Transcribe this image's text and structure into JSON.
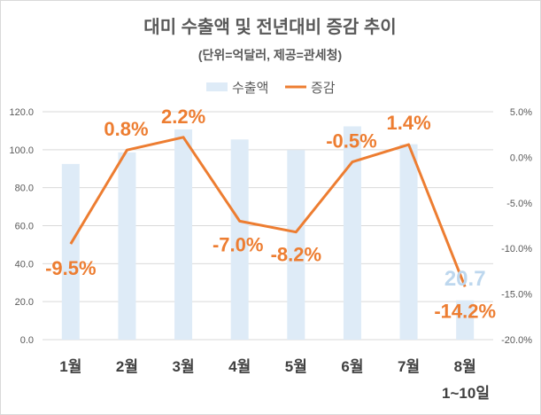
{
  "chart_data": {
    "type": "bar+line",
    "title": "대미 수출액 및 전년대비 증감 추이",
    "subtitle": "(단위=억달러, 제공=관세청)",
    "categories": [
      "1월",
      "2월",
      "3월",
      "4월",
      "5월",
      "6월",
      "7월",
      "8월"
    ],
    "category_note": "1~10일",
    "series": [
      {
        "name": "수출액",
        "type": "bar",
        "axis": "left",
        "color": "#deebf7",
        "values": [
          92.5,
          98.6,
          110.7,
          105.4,
          99.8,
          112.3,
          102.9,
          20.7
        ],
        "data_labels": [
          null,
          null,
          null,
          null,
          null,
          null,
          null,
          "20.7"
        ]
      },
      {
        "name": "증감",
        "type": "line",
        "axis": "right",
        "color": "#ed7d31",
        "values": [
          -9.5,
          0.8,
          2.2,
          -7.0,
          -8.2,
          -0.5,
          1.4,
          -14.2
        ],
        "data_labels": [
          "-9.5%",
          "0.8%",
          "2.2%",
          "-7.0%",
          "-8.2%",
          "-0.5%",
          "1.4%",
          "-14.2%"
        ]
      }
    ],
    "left_axis": {
      "ylim": [
        0,
        120
      ],
      "ticks": [
        "0.0",
        "20.0",
        "40.0",
        "60.0",
        "80.0",
        "100.0",
        "120.0"
      ]
    },
    "right_axis": {
      "ylim": [
        -20,
        5
      ],
      "ticks": [
        "-20.0%",
        "-15.0%",
        "-10.0%",
        "-5.0%",
        "0.0%",
        "5.0%"
      ]
    },
    "grid": true,
    "legend": "top-center"
  }
}
